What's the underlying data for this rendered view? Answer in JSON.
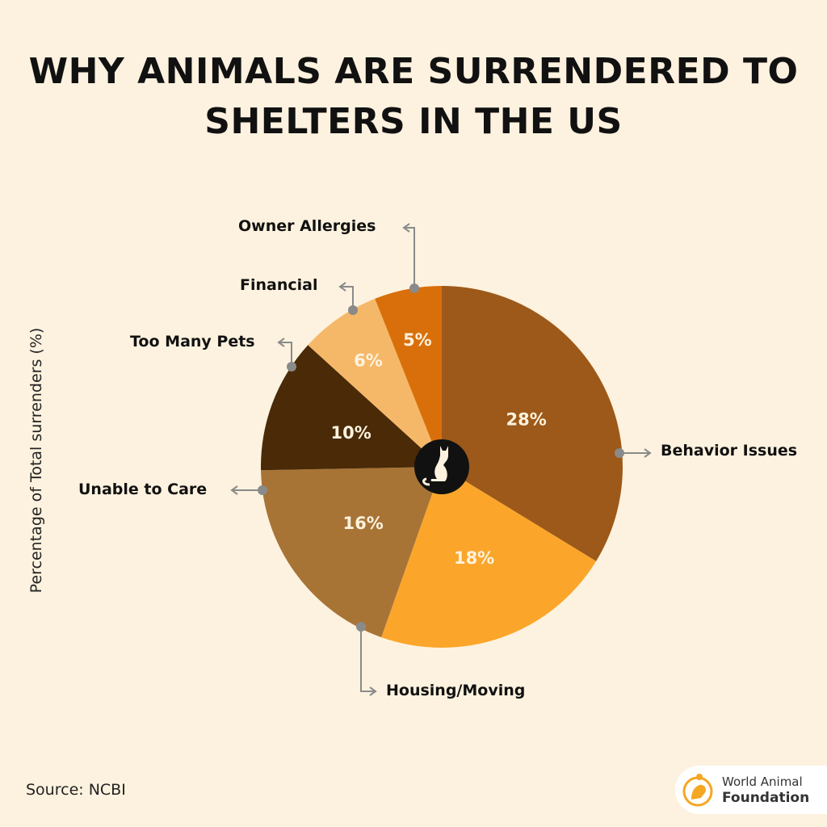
{
  "chart_data": {
    "type": "pie",
    "title": "WHY ANIMALS ARE SURRENDERED TO SHELTERS IN THE US",
    "ylabel": "Percentage of Total surrenders (%)",
    "slices": [
      {
        "label": "Behavior Issues",
        "value": 28,
        "display": "28%",
        "color": "#9D5919"
      },
      {
        "label": "Housing/Moving",
        "value": 18,
        "display": "18%",
        "color": "#FBA62B"
      },
      {
        "label": "Unable to Care",
        "value": 16,
        "display": "16%",
        "color": "#A87436"
      },
      {
        "label": "Too Many Pets",
        "value": 10,
        "display": "10%",
        "color": "#4A2A07"
      },
      {
        "label": "Financial",
        "value": 6,
        "display": "6%",
        "color": "#F5B868"
      },
      {
        "label": "Owner Allergies",
        "value": 5,
        "display": "5%",
        "color": "#D96F0A"
      }
    ]
  },
  "source": "Source: NCBI",
  "logo": {
    "line1": "World Animal",
    "line2": "Foundation",
    "color": "#F5A623"
  },
  "center_icon": "cat-icon"
}
